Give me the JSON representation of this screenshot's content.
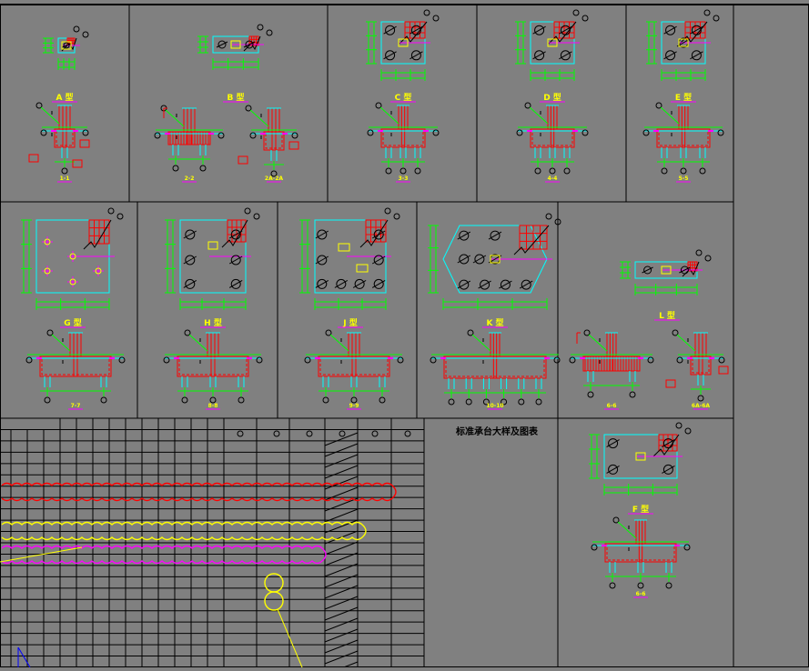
{
  "drawing": {
    "title": "标准承台大样及图表",
    "background": "#808080",
    "colors": {
      "border": "#000000",
      "plan_outline": "#00ffff",
      "dimension": "#00ff00",
      "rebar": "#ff0000",
      "label": "#ffff00",
      "label_underline": "#ff00ff",
      "pile_symbol": "#000000",
      "cloud_red": "#ff0000",
      "cloud_yellow": "#ffff00",
      "cloud_magenta": "#ff00ff"
    },
    "panels": [
      {
        "id": "A",
        "type_label": "A 型",
        "section_label": "1-1",
        "piles": 1,
        "shape": "rect"
      },
      {
        "id": "B",
        "type_label": "B 型",
        "section_labels": [
          "2-2",
          "2A-2A"
        ],
        "piles": 2,
        "shape": "rect"
      },
      {
        "id": "C",
        "type_label": "C 型",
        "section_label": "3-3",
        "piles": 4,
        "shape": "rect"
      },
      {
        "id": "D",
        "type_label": "D 型",
        "section_label": "4-4",
        "piles": 4,
        "shape": "rect"
      },
      {
        "id": "E",
        "type_label": "E 型",
        "section_label": "5-5",
        "piles": 5,
        "shape": "rect"
      },
      {
        "id": "G",
        "type_label": "G 型",
        "section_label": "7-7",
        "piles": 5,
        "shape": "rect"
      },
      {
        "id": "H",
        "type_label": "H 型",
        "section_label": "8-8",
        "piles": 6,
        "shape": "rect"
      },
      {
        "id": "J",
        "type_label": "J 型",
        "section_label": "9-9",
        "piles": 8,
        "shape": "rect"
      },
      {
        "id": "K",
        "type_label": "K 型",
        "section_label": "10-10",
        "piles": 9,
        "shape": "hex"
      },
      {
        "id": "L",
        "type_label": "L 型",
        "section_labels": [
          "6-6",
          "6A-6A"
        ],
        "piles": 2,
        "shape": "rect"
      },
      {
        "id": "F",
        "type_label": "F 型",
        "section_label": "6-6",
        "piles": 4,
        "shape": "rect"
      }
    ],
    "table": {
      "rows": 22,
      "columns": 17
    }
  }
}
